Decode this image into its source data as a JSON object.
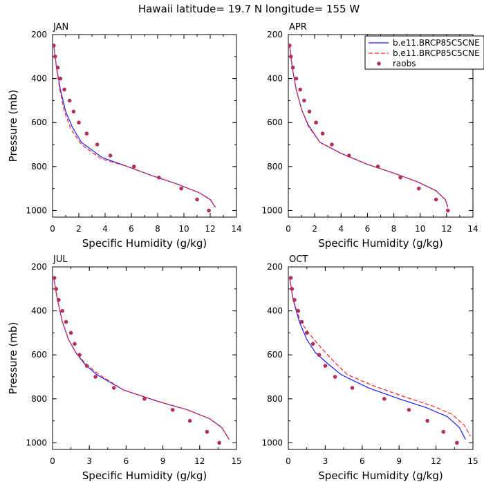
{
  "figure": {
    "title": "Hawaii  latitude= 19.7 N longitude= 155 W"
  },
  "legend": {
    "entries": [
      {
        "label": "b.e11.BRCP85C5CNE",
        "color": "#1a1aff",
        "style": "solid"
      },
      {
        "label": "b.e11.BRCP85C5CNE",
        "color": "#ff2020",
        "style": "dashed"
      },
      {
        "label": "raobs",
        "color": "#b03060",
        "style": "marker"
      }
    ],
    "placement": "top-right of APR panel"
  },
  "chart_data": [
    {
      "type": "line",
      "panel": "JAN",
      "xlabel": "Specific Humidity (g/kg)",
      "ylabel": "Pressure (mb)",
      "xlim": [
        0,
        14
      ],
      "xticks": [
        0,
        2,
        4,
        6,
        8,
        10,
        12,
        14
      ],
      "ylim": [
        200,
        1030
      ],
      "yticks": [
        200,
        400,
        600,
        800,
        1000
      ],
      "y_inverted": true,
      "series": [
        {
          "name": "b.e11.BRCP85C5CNE",
          "style": "solid",
          "color": "#1a1aff",
          "x": [
            0.1,
            0.3,
            0.6,
            1.0,
            1.5,
            2.2,
            3.8,
            5.7,
            7.5,
            9.5,
            11.2,
            12.0,
            12.4
          ],
          "y": [
            250,
            350,
            450,
            550,
            620,
            690,
            760,
            800,
            840,
            880,
            920,
            950,
            985
          ]
        },
        {
          "name": "b.e11.BRCP85C5CNE",
          "style": "dashed",
          "color": "#ff2020",
          "x": [
            0.1,
            0.3,
            0.55,
            0.9,
            1.4,
            2.2,
            3.7,
            5.7,
            7.5,
            9.5,
            11.2,
            12.0,
            12.4
          ],
          "y": [
            250,
            350,
            450,
            550,
            630,
            700,
            765,
            800,
            840,
            880,
            920,
            950,
            985
          ]
        },
        {
          "name": "raobs",
          "style": "marker",
          "color": "#b03060",
          "x": [
            0.1,
            0.2,
            0.4,
            0.6,
            0.9,
            1.3,
            1.6,
            2.0,
            2.6,
            3.4,
            4.4,
            6.2,
            8.1,
            9.8,
            11.0,
            11.9
          ],
          "y": [
            250,
            300,
            350,
            400,
            450,
            500,
            550,
            600,
            650,
            700,
            750,
            800,
            850,
            900,
            950,
            1000
          ]
        }
      ]
    },
    {
      "type": "line",
      "panel": "APR",
      "xlabel": "Specific Humidity (g/kg)",
      "ylabel": "",
      "xlim": [
        0,
        14
      ],
      "xticks": [
        0,
        2,
        4,
        6,
        8,
        10,
        12,
        14
      ],
      "ylim": [
        200,
        1030
      ],
      "yticks": [
        200,
        400,
        600,
        800,
        1000
      ],
      "y_inverted": true,
      "series": [
        {
          "name": "b.e11.BRCP85C5CNE",
          "style": "solid",
          "color": "#1a1aff",
          "x": [
            0.1,
            0.3,
            0.6,
            1.0,
            1.5,
            2.4,
            4.0,
            6.0,
            8.0,
            9.8,
            11.2,
            11.9,
            12.1
          ],
          "y": [
            250,
            350,
            450,
            540,
            610,
            690,
            740,
            790,
            830,
            870,
            910,
            950,
            985
          ]
        },
        {
          "name": "b.e11.BRCP85C5CNE",
          "style": "dashed",
          "color": "#ff2020",
          "x": [
            0.1,
            0.3,
            0.6,
            1.0,
            1.5,
            2.4,
            4.0,
            6.0,
            8.0,
            9.8,
            11.2,
            11.9,
            12.1
          ],
          "y": [
            250,
            350,
            450,
            540,
            615,
            690,
            740,
            790,
            830,
            870,
            910,
            950,
            985
          ]
        },
        {
          "name": "raobs",
          "style": "marker",
          "color": "#b03060",
          "x": [
            0.1,
            0.2,
            0.35,
            0.6,
            0.9,
            1.2,
            1.6,
            2.1,
            2.6,
            3.3,
            4.6,
            6.8,
            8.5,
            9.9,
            11.2,
            12.1
          ],
          "y": [
            250,
            300,
            350,
            400,
            450,
            500,
            550,
            600,
            650,
            700,
            750,
            800,
            850,
            900,
            950,
            1000
          ]
        }
      ]
    },
    {
      "type": "line",
      "panel": "JUL",
      "xlabel": "Specific Humidity (g/kg)",
      "ylabel": "Pressure (mb)",
      "xlim": [
        0,
        15
      ],
      "xticks": [
        0,
        3,
        6,
        9,
        12,
        15
      ],
      "ylim": [
        200,
        1030
      ],
      "yticks": [
        200,
        400,
        600,
        800,
        1000
      ],
      "y_inverted": true,
      "series": [
        {
          "name": "b.e11.BRCP85C5CNE",
          "style": "solid",
          "color": "#1a1aff",
          "x": [
            0.1,
            0.4,
            0.8,
            1.3,
            1.9,
            2.6,
            3.6,
            5.8,
            8.5,
            11.0,
            12.8,
            13.8,
            14.4
          ],
          "y": [
            250,
            350,
            450,
            530,
            590,
            640,
            690,
            760,
            810,
            850,
            890,
            930,
            985
          ]
        },
        {
          "name": "b.e11.BRCP85C5CNE",
          "style": "dashed",
          "color": "#ff2020",
          "x": [
            0.1,
            0.4,
            0.8,
            1.3,
            1.9,
            2.7,
            3.8,
            5.8,
            8.5,
            11.0,
            12.8,
            13.8,
            14.4
          ],
          "y": [
            250,
            350,
            450,
            530,
            590,
            640,
            690,
            760,
            810,
            850,
            890,
            930,
            985
          ]
        },
        {
          "name": "raobs",
          "style": "marker",
          "color": "#b03060",
          "x": [
            0.15,
            0.3,
            0.5,
            0.8,
            1.1,
            1.5,
            1.8,
            2.2,
            2.8,
            3.5,
            5.0,
            7.5,
            9.8,
            11.2,
            12.6,
            13.6
          ],
          "y": [
            250,
            300,
            350,
            400,
            450,
            500,
            550,
            600,
            650,
            700,
            750,
            800,
            850,
            900,
            950,
            1000
          ]
        }
      ]
    },
    {
      "type": "line",
      "panel": "OCT",
      "xlabel": "Specific Humidity (g/kg)",
      "ylabel": "",
      "xlim": [
        0,
        15
      ],
      "xticks": [
        0,
        3,
        6,
        9,
        12,
        15
      ],
      "ylim": [
        200,
        1030
      ],
      "yticks": [
        200,
        400,
        600,
        800,
        1000
      ],
      "y_inverted": true,
      "series": [
        {
          "name": "b.e11.BRCP85C5CNE",
          "style": "solid",
          "color": "#1a1aff",
          "x": [
            0.1,
            0.4,
            0.9,
            1.5,
            2.2,
            3.2,
            4.3,
            6.5,
            9.0,
            11.2,
            12.9,
            13.9,
            14.4
          ],
          "y": [
            250,
            350,
            450,
            530,
            590,
            640,
            690,
            750,
            800,
            840,
            880,
            930,
            985
          ]
        },
        {
          "name": "b.e11.BRCP85C5CNE",
          "style": "dashed",
          "color": "#ff2020",
          "x": [
            0.1,
            0.4,
            1.0,
            1.8,
            2.7,
            3.7,
            4.8,
            6.9,
            9.4,
            11.6,
            13.3,
            14.3,
            14.8
          ],
          "y": [
            250,
            350,
            450,
            510,
            570,
            630,
            690,
            740,
            790,
            830,
            870,
            920,
            970
          ]
        },
        {
          "name": "raobs",
          "style": "marker",
          "color": "#b03060",
          "x": [
            0.2,
            0.3,
            0.5,
            0.8,
            1.1,
            1.5,
            2.0,
            2.5,
            3.0,
            3.8,
            5.2,
            7.8,
            9.8,
            11.3,
            12.6,
            13.7
          ],
          "y": [
            250,
            300,
            350,
            400,
            450,
            500,
            550,
            600,
            650,
            700,
            750,
            800,
            850,
            900,
            950,
            1000
          ]
        }
      ]
    }
  ]
}
